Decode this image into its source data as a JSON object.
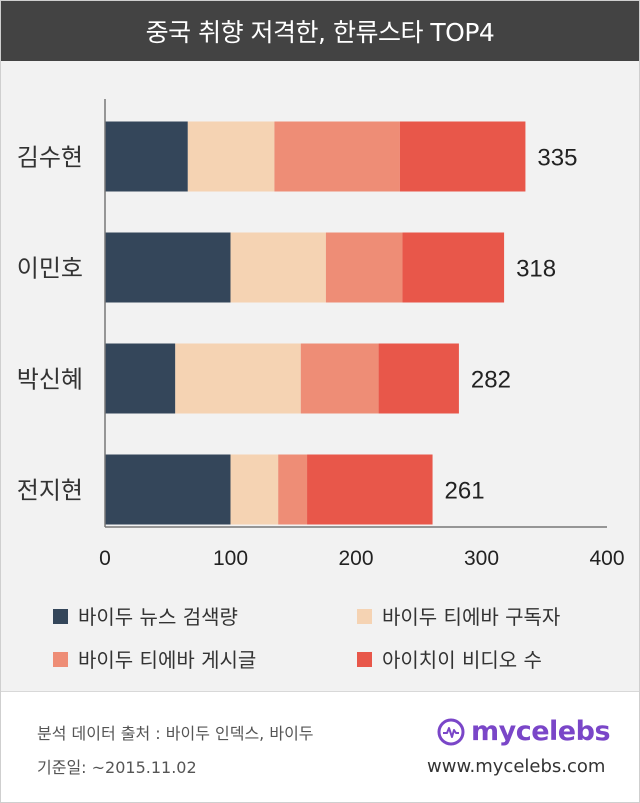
{
  "title": "중국 취향 저격한, 한류스타 TOP4",
  "chart_data": {
    "type": "bar",
    "orientation": "horizontal",
    "stacked": true,
    "categories": [
      "김수현",
      "이민호",
      "박신혜",
      "전지현"
    ],
    "series": [
      {
        "name": "바이두 뉴스 검색량",
        "color": "#34465a",
        "values": [
          66,
          100,
          56,
          100
        ]
      },
      {
        "name": "바이두 티에바 구독자",
        "color": "#f5d3b3",
        "values": [
          69,
          76,
          100,
          38
        ]
      },
      {
        "name": "바이두 티에바 게시글",
        "color": "#ee8d76",
        "values": [
          100,
          61,
          62,
          23
        ]
      },
      {
        "name": "아이치이 비디오 수",
        "color": "#e8574a",
        "values": [
          100,
          81,
          64,
          100
        ]
      }
    ],
    "totals": [
      335,
      318,
      282,
      261
    ],
    "total_labels": [
      "335",
      "318",
      "282",
      "261"
    ],
    "xticks": [
      "0",
      "100",
      "200",
      "300",
      "400"
    ],
    "xlim": [
      0,
      400
    ],
    "grid": false,
    "legend_position": "bottom"
  },
  "footer": {
    "source": "분석 데이터 출처 : 바이두 인덱스, 바이두",
    "date": "기준일: ~2015.11.02",
    "brand": "mycelebs",
    "url": "www.mycelebs.com"
  }
}
